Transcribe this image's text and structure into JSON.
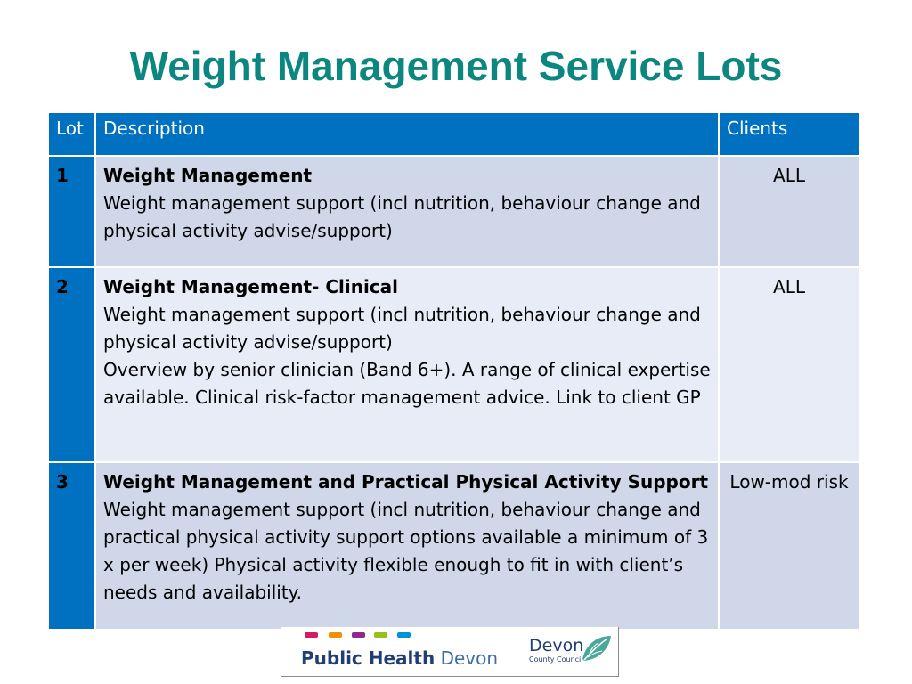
{
  "title": "Weight Management Service Lots",
  "table": {
    "headers": {
      "lot": "Lot",
      "description": "Description",
      "clients": "Clients"
    },
    "rows": [
      {
        "lot": "1",
        "desc_title": "Weight Management",
        "desc_lines": [
          "Weight management support (incl nutrition, behaviour change and physical activity advise/support)"
        ],
        "clients": "ALL"
      },
      {
        "lot": "2",
        "desc_title": "Weight Management- Clinical",
        "desc_lines": [
          "Weight management support (incl nutrition, behaviour change and physical activity advise/support)",
          "Overview by senior clinician (Band 6+). A range of clinical expertise available. Clinical risk-factor management advice. Link to client GP"
        ],
        "clients": "ALL"
      },
      {
        "lot": "3",
        "desc_title": "Weight Management and Practical Physical Activity Support",
        "desc_lines": [
          "Weight management support (incl nutrition, behaviour change and practical physical activity support options available a minimum of 3 x per week) Physical activity flexible enough to fit in with client’s needs and availability."
        ],
        "clients": "Low-mod risk"
      }
    ]
  },
  "logos": {
    "public_health_bold": "Public Health",
    "public_health_light": "Devon",
    "council_name": "Devon",
    "council_sub": "County Council",
    "dash_colors": [
      "#d81b60",
      "#f39200",
      "#8e2a8e",
      "#95c11f",
      "#0093d5"
    ]
  }
}
